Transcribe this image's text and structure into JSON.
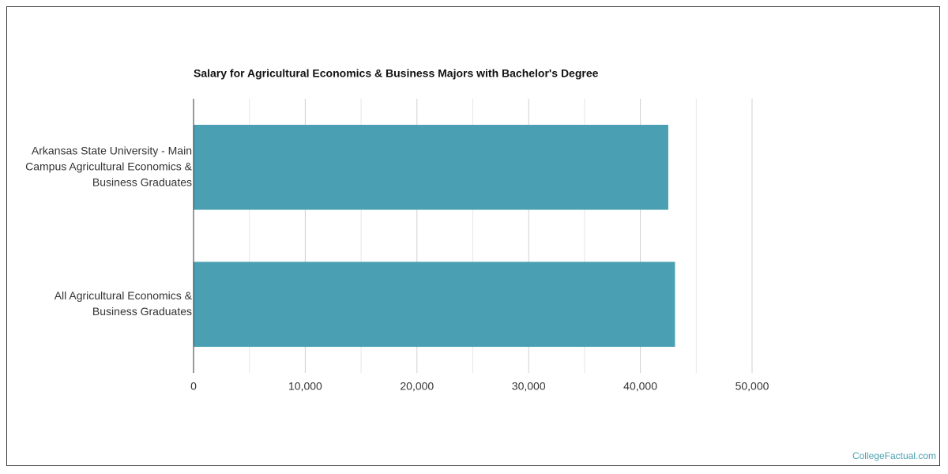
{
  "chart_data": {
    "type": "bar",
    "orientation": "horizontal",
    "title": "Salary for Agricultural Economics & Business Majors with Bachelor's Degree",
    "categories": [
      [
        "Arkansas State University - Main",
        "Campus Agricultural Economics &",
        "Business Graduates"
      ],
      [
        "All Agricultural Economics &",
        "Business Graduates"
      ]
    ],
    "values": [
      42500,
      43100
    ],
    "color": "#4aa0b2",
    "xlim": [
      0,
      50000
    ],
    "xticks": [
      0,
      {
        "value": 10000,
        "label": "10,000"
      },
      {
        "value": 20000,
        "label": "20,000"
      },
      {
        "value": 30000,
        "label": "30,000"
      },
      {
        "value": 40000,
        "label": "40,000"
      },
      {
        "value": 50000,
        "label": "50,000"
      }
    ],
    "minor_xticks": [
      5000,
      15000,
      25000,
      35000,
      45000
    ],
    "grid": true
  },
  "footer": "CollegeFactual.com"
}
